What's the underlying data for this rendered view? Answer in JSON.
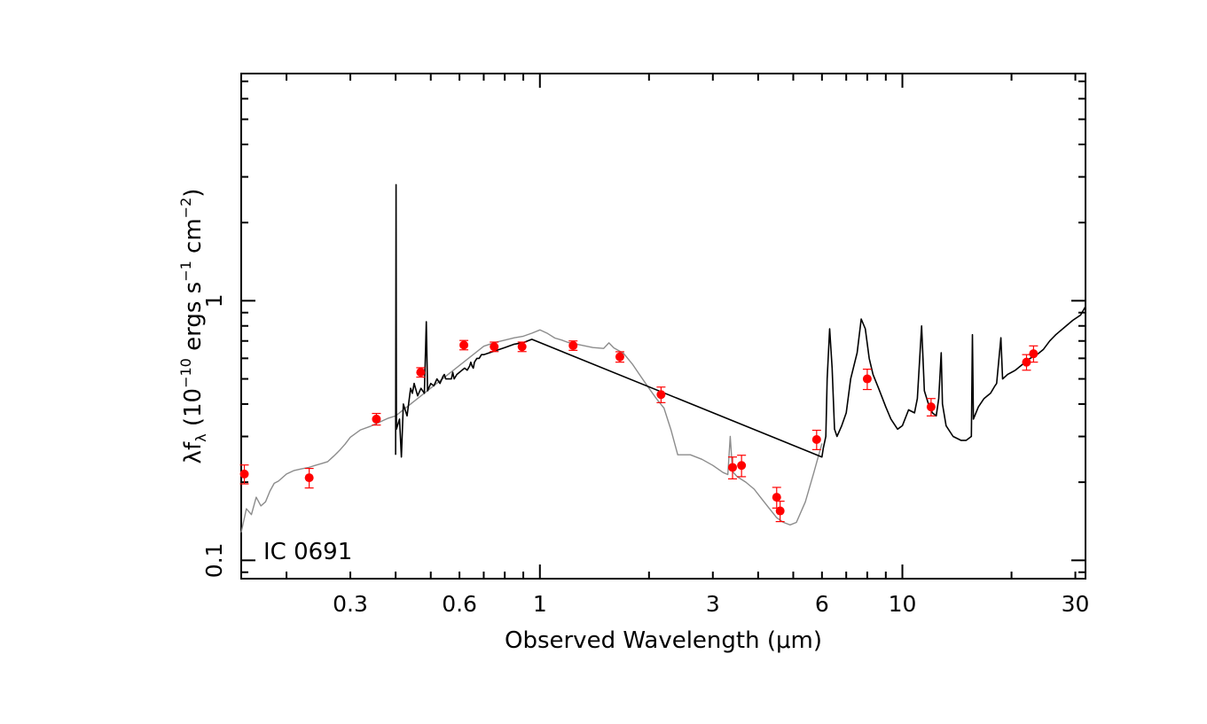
{
  "chart_data": {
    "type": "scatter",
    "xlabel": "Observed Wavelength (μm)",
    "ylabel": {
      "prefix": "λf",
      "subscript": "λ",
      "text_1": " (10",
      "sup_1": "−10",
      "text_2": " ergs s",
      "sup_2": "−1",
      "text_3": " cm",
      "sup_3": "−2",
      "text_4": ")"
    },
    "annotation": "IC 0691",
    "x_scale": "log",
    "y_scale": "log",
    "xlim": [
      0.15,
      32
    ],
    "ylim": [
      0.085,
      7.5
    ],
    "x_ticks": [
      {
        "value": 0.3,
        "label": "0.3"
      },
      {
        "value": 0.6,
        "label": "0.6"
      },
      {
        "value": 1,
        "label": "1"
      },
      {
        "value": 3,
        "label": "3"
      },
      {
        "value": 6,
        "label": "6"
      },
      {
        "value": 10,
        "label": "10"
      },
      {
        "value": 30,
        "label": "30"
      }
    ],
    "y_ticks": [
      {
        "value": 0.1,
        "label": "0.1"
      },
      {
        "value": 1,
        "label": "1"
      }
    ],
    "series": [
      {
        "kind": "model",
        "color": "#8c8c8c",
        "points": [
          [
            0.15,
            0.128
          ],
          [
            0.155,
            0.158
          ],
          [
            0.16,
            0.15
          ],
          [
            0.165,
            0.175
          ],
          [
            0.17,
            0.162
          ],
          [
            0.175,
            0.168
          ],
          [
            0.18,
            0.185
          ],
          [
            0.185,
            0.198
          ],
          [
            0.19,
            0.202
          ],
          [
            0.2,
            0.215
          ],
          [
            0.21,
            0.222
          ],
          [
            0.22,
            0.225
          ],
          [
            0.23,
            0.228
          ],
          [
            0.24,
            0.232
          ],
          [
            0.25,
            0.236
          ],
          [
            0.26,
            0.24
          ],
          [
            0.27,
            0.252
          ],
          [
            0.28,
            0.265
          ],
          [
            0.29,
            0.28
          ],
          [
            0.3,
            0.298
          ],
          [
            0.32,
            0.318
          ],
          [
            0.34,
            0.328
          ],
          [
            0.36,
            0.34
          ],
          [
            0.38,
            0.352
          ],
          [
            0.4,
            0.36
          ],
          [
            0.7,
            0.668
          ],
          [
            0.75,
            0.69
          ],
          [
            0.8,
            0.705
          ],
          [
            0.85,
            0.72
          ],
          [
            0.9,
            0.73
          ],
          [
            0.95,
            0.75
          ],
          [
            1.0,
            0.772
          ],
          [
            1.05,
            0.748
          ],
          [
            1.1,
            0.718
          ],
          [
            1.15,
            0.705
          ],
          [
            1.2,
            0.69
          ],
          [
            1.3,
            0.675
          ],
          [
            1.4,
            0.66
          ],
          [
            1.5,
            0.655
          ],
          [
            1.55,
            0.688
          ],
          [
            1.6,
            0.658
          ],
          [
            1.7,
            0.628
          ],
          [
            1.8,
            0.57
          ],
          [
            1.9,
            0.51
          ],
          [
            2.0,
            0.46
          ],
          [
            2.1,
            0.418
          ],
          [
            2.2,
            0.386
          ],
          [
            2.3,
            0.318
          ],
          [
            2.4,
            0.255
          ],
          [
            2.5,
            0.255
          ],
          [
            2.6,
            0.255
          ],
          [
            2.8,
            0.245
          ],
          [
            3.0,
            0.232
          ],
          [
            3.2,
            0.218
          ],
          [
            3.3,
            0.214
          ],
          [
            3.35,
            0.3
          ],
          [
            3.4,
            0.22
          ],
          [
            3.5,
            0.21
          ],
          [
            3.7,
            0.2
          ],
          [
            3.9,
            0.188
          ],
          [
            4.1,
            0.172
          ],
          [
            4.3,
            0.158
          ],
          [
            4.5,
            0.146
          ],
          [
            4.7,
            0.14
          ],
          [
            4.9,
            0.137
          ],
          [
            5.1,
            0.14
          ],
          [
            5.4,
            0.168
          ],
          [
            5.7,
            0.218
          ],
          [
            6.0,
            0.282
          ]
        ]
      },
      {
        "kind": "spectrum",
        "color": "#000000",
        "points": [
          [
            0.4,
            0.255
          ],
          [
            0.401,
            2.8
          ],
          [
            0.402,
            0.32
          ],
          [
            0.41,
            0.35
          ],
          [
            0.415,
            0.25
          ],
          [
            0.42,
            0.4
          ],
          [
            0.43,
            0.36
          ],
          [
            0.44,
            0.46
          ],
          [
            0.445,
            0.44
          ],
          [
            0.45,
            0.48
          ],
          [
            0.46,
            0.43
          ],
          [
            0.47,
            0.46
          ],
          [
            0.48,
            0.44
          ],
          [
            0.486,
            0.83
          ],
          [
            0.49,
            0.45
          ],
          [
            0.5,
            0.48
          ],
          [
            0.51,
            0.47
          ],
          [
            0.52,
            0.5
          ],
          [
            0.53,
            0.48
          ],
          [
            0.54,
            0.51
          ],
          [
            0.545,
            0.52
          ],
          [
            0.55,
            0.5
          ],
          [
            0.56,
            0.5
          ],
          [
            0.57,
            0.5
          ],
          [
            0.575,
            0.53
          ],
          [
            0.58,
            0.5
          ],
          [
            0.59,
            0.52
          ],
          [
            0.6,
            0.53
          ],
          [
            0.62,
            0.55
          ],
          [
            0.63,
            0.54
          ],
          [
            0.64,
            0.56
          ],
          [
            0.645,
            0.58
          ],
          [
            0.65,
            0.56
          ],
          [
            0.655,
            0.55
          ],
          [
            0.66,
            0.58
          ],
          [
            0.67,
            0.6
          ],
          [
            0.68,
            0.6
          ],
          [
            0.69,
            0.62
          ],
          [
            0.7,
            0.62
          ],
          [
            0.75,
            0.64
          ],
          [
            0.8,
            0.66
          ],
          [
            0.85,
            0.68
          ],
          [
            0.9,
            0.69
          ],
          [
            0.95,
            0.71
          ],
          [
            6.0,
            0.25
          ],
          [
            6.05,
            0.27
          ],
          [
            6.15,
            0.3
          ],
          [
            6.2,
            0.5
          ],
          [
            6.3,
            0.78
          ],
          [
            6.4,
            0.55
          ],
          [
            6.5,
            0.32
          ],
          [
            6.6,
            0.3
          ],
          [
            6.8,
            0.33
          ],
          [
            7.0,
            0.37
          ],
          [
            7.2,
            0.5
          ],
          [
            7.5,
            0.63
          ],
          [
            7.7,
            0.85
          ],
          [
            7.9,
            0.78
          ],
          [
            8.1,
            0.6
          ],
          [
            8.3,
            0.52
          ],
          [
            8.6,
            0.46
          ],
          [
            9.0,
            0.39
          ],
          [
            9.3,
            0.35
          ],
          [
            9.7,
            0.32
          ],
          [
            10.0,
            0.33
          ],
          [
            10.4,
            0.38
          ],
          [
            10.8,
            0.37
          ],
          [
            11.0,
            0.42
          ],
          [
            11.3,
            0.8
          ],
          [
            11.5,
            0.45
          ],
          [
            11.8,
            0.4
          ],
          [
            12.1,
            0.37
          ],
          [
            12.4,
            0.36
          ],
          [
            12.6,
            0.42
          ],
          [
            12.8,
            0.63
          ],
          [
            12.9,
            0.4
          ],
          [
            13.2,
            0.33
          ],
          [
            13.8,
            0.3
          ],
          [
            14.5,
            0.29
          ],
          [
            15.0,
            0.29
          ],
          [
            15.5,
            0.3
          ],
          [
            15.6,
            0.74
          ],
          [
            15.7,
            0.35
          ],
          [
            16.2,
            0.39
          ],
          [
            16.8,
            0.42
          ],
          [
            17.5,
            0.44
          ],
          [
            18.0,
            0.47
          ],
          [
            18.2,
            0.48
          ],
          [
            18.7,
            0.72
          ],
          [
            18.9,
            0.5
          ],
          [
            19.5,
            0.52
          ],
          [
            20.5,
            0.54
          ],
          [
            21.5,
            0.57
          ],
          [
            22.5,
            0.6
          ],
          [
            23.5,
            0.62
          ],
          [
            24.5,
            0.65
          ],
          [
            25.5,
            0.7
          ],
          [
            26.5,
            0.74
          ],
          [
            28,
            0.79
          ],
          [
            29.5,
            0.84
          ],
          [
            31,
            0.88
          ],
          [
            32,
            0.95
          ]
        ]
      },
      {
        "kind": "photometry",
        "color": "#ff0000",
        "points": [
          {
            "x": 0.153,
            "y": 0.215,
            "err": 0.018
          },
          {
            "x": 0.231,
            "y": 0.208,
            "err": 0.018
          },
          {
            "x": 0.354,
            "y": 0.35,
            "err": 0.018
          },
          {
            "x": 0.469,
            "y": 0.53,
            "err": 0.022
          },
          {
            "x": 0.617,
            "y": 0.675,
            "err": 0.028
          },
          {
            "x": 0.748,
            "y": 0.665,
            "err": 0.028
          },
          {
            "x": 0.893,
            "y": 0.665,
            "err": 0.028
          },
          {
            "x": 1.235,
            "y": 0.672,
            "err": 0.028
          },
          {
            "x": 1.662,
            "y": 0.608,
            "err": 0.028
          },
          {
            "x": 2.159,
            "y": 0.435,
            "err": 0.03
          },
          {
            "x": 3.4,
            "y": 0.228,
            "err": 0.022
          },
          {
            "x": 3.6,
            "y": 0.232,
            "err": 0.022
          },
          {
            "x": 4.5,
            "y": 0.175,
            "err": 0.016
          },
          {
            "x": 4.6,
            "y": 0.155,
            "err": 0.014
          },
          {
            "x": 5.8,
            "y": 0.292,
            "err": 0.025
          },
          {
            "x": 8.0,
            "y": 0.5,
            "err": 0.045
          },
          {
            "x": 12.0,
            "y": 0.39,
            "err": 0.03
          },
          {
            "x": 22.0,
            "y": 0.58,
            "err": 0.04
          },
          {
            "x": 23.0,
            "y": 0.625,
            "err": 0.045
          }
        ]
      }
    ]
  }
}
